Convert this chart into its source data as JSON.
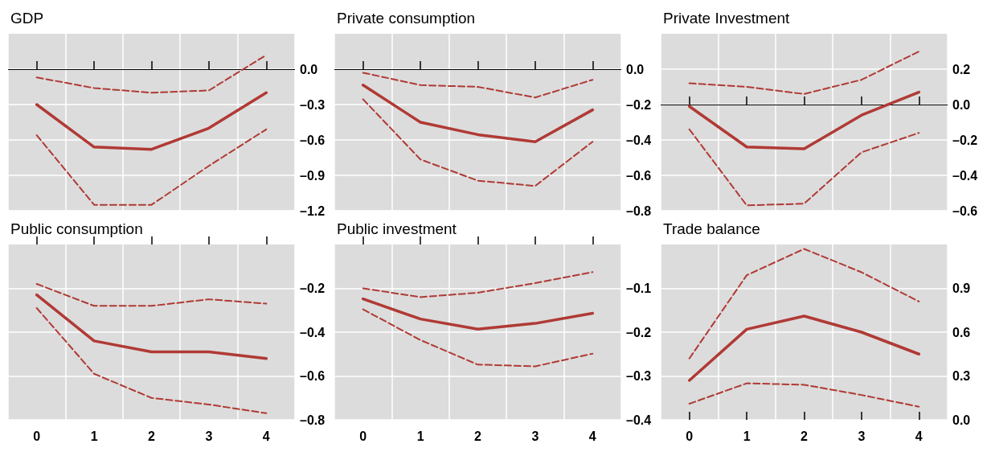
{
  "chart_data": [
    {
      "type": "line",
      "title": "GDP",
      "categories": [
        "0",
        "1",
        "2",
        "3",
        "4"
      ],
      "ylim": [
        -1.2,
        0.3
      ],
      "yticks": [
        {
          "value": 0,
          "label": "0.0"
        },
        {
          "value": -0.3,
          "label": "–0.3"
        },
        {
          "value": -0.6,
          "label": "–0.6"
        },
        {
          "value": -0.9,
          "label": "–0.9"
        },
        {
          "value": -1.2,
          "label": "–1.2"
        }
      ],
      "grid": true,
      "tick_labels": "y",
      "marker": "none",
      "ref_lines": [
        {
          "axis": "y",
          "value": 0,
          "color": "#000000"
        }
      ],
      "series": [
        {
          "color": "#b03a35",
          "line_style": "solid",
          "values": [
            -0.3,
            -0.66,
            -0.68,
            -0.5,
            -0.2
          ]
        },
        {
          "color": "#b03a35",
          "line_style": "dashed",
          "values": [
            -0.07,
            -0.16,
            -0.2,
            -0.18,
            0.12
          ]
        },
        {
          "color": "#b03a35",
          "line_style": "dashed",
          "values": [
            -0.56,
            -1.15,
            -1.15,
            -0.82,
            -0.51
          ]
        }
      ]
    },
    {
      "type": "line",
      "title": "Private consumption",
      "categories": [
        "0",
        "1",
        "2",
        "3",
        "4"
      ],
      "ylim": [
        -0.8,
        0.2
      ],
      "yticks": [
        {
          "value": 0,
          "label": "0.0"
        },
        {
          "value": -0.2,
          "label": "–0.2"
        },
        {
          "value": -0.4,
          "label": "–0.4"
        },
        {
          "value": -0.6,
          "label": "–0.6"
        },
        {
          "value": -0.8,
          "label": "–0.8"
        }
      ],
      "grid": true,
      "tick_labels": "y",
      "marker": "none",
      "ref_lines": [
        {
          "axis": "y",
          "value": 0,
          "color": "#000000"
        }
      ],
      "series": [
        {
          "color": "#b03a35",
          "line_style": "solid",
          "values": [
            -0.09,
            -0.3,
            -0.37,
            -0.41,
            -0.23
          ]
        },
        {
          "color": "#b03a35",
          "line_style": "dashed",
          "values": [
            -0.02,
            -0.09,
            -0.1,
            -0.16,
            -0.06
          ]
        },
        {
          "color": "#b03a35",
          "line_style": "dashed",
          "values": [
            -0.17,
            -0.51,
            -0.63,
            -0.66,
            -0.41
          ]
        }
      ]
    },
    {
      "type": "line",
      "title": "Private Investment",
      "categories": [
        "0",
        "1",
        "2",
        "3",
        "4"
      ],
      "ylim": [
        -0.6,
        0.4
      ],
      "yticks": [
        {
          "value": 0.2,
          "label": "0.2"
        },
        {
          "value": 0,
          "label": "0.0"
        },
        {
          "value": -0.2,
          "label": "–0.2"
        },
        {
          "value": -0.4,
          "label": "–0.4"
        },
        {
          "value": -0.6,
          "label": "–0.6"
        }
      ],
      "grid": true,
      "tick_labels": "y",
      "marker": "none",
      "ref_lines": [
        {
          "axis": "y",
          "value": 0,
          "color": "#000000"
        }
      ],
      "series": [
        {
          "color": "#b03a35",
          "line_style": "solid",
          "values": [
            -0.01,
            -0.24,
            -0.25,
            -0.06,
            0.07
          ]
        },
        {
          "color": "#b03a35",
          "line_style": "dashed",
          "values": [
            0.12,
            0.1,
            0.06,
            0.14,
            0.3
          ]
        },
        {
          "color": "#b03a35",
          "line_style": "dashed",
          "values": [
            -0.14,
            -0.57,
            -0.56,
            -0.27,
            -0.16
          ]
        }
      ]
    },
    {
      "type": "line",
      "title": "Public consumption",
      "categories": [
        "0",
        "1",
        "2",
        "3",
        "4"
      ],
      "ylim": [
        -0.8,
        0
      ],
      "yticks": [
        {
          "value": -0.2,
          "label": "–0.2"
        },
        {
          "value": -0.4,
          "label": "–0.4"
        },
        {
          "value": -0.6,
          "label": "–0.6"
        },
        {
          "value": -0.8,
          "label": "–0.8"
        }
      ],
      "grid": true,
      "marker": "none",
      "series": [
        {
          "color": "#b03a35",
          "line_style": "solid",
          "values": [
            -0.23,
            -0.44,
            -0.49,
            -0.49,
            -0.52
          ]
        },
        {
          "color": "#b03a35",
          "line_style": "dashed",
          "values": [
            -0.18,
            -0.28,
            -0.28,
            -0.25,
            -0.27
          ]
        },
        {
          "color": "#b03a35",
          "line_style": "dashed",
          "values": [
            -0.29,
            -0.59,
            -0.7,
            -0.73,
            -0.77
          ]
        }
      ]
    },
    {
      "type": "line",
      "title": "Public investment",
      "categories": [
        "0",
        "1",
        "2",
        "3",
        "4"
      ],
      "ylim": [
        -0.4,
        0
      ],
      "yticks": [
        {
          "value": -0.1,
          "label": "–0.1"
        },
        {
          "value": -0.2,
          "label": "–0.2"
        },
        {
          "value": -0.3,
          "label": "–0.3"
        },
        {
          "value": -0.4,
          "label": "–0.4"
        }
      ],
      "grid": true,
      "marker": "none",
      "series": [
        {
          "color": "#b03a35",
          "line_style": "solid",
          "values": [
            -0.124,
            -0.17,
            -0.193,
            -0.18,
            -0.157
          ]
        },
        {
          "color": "#b03a35",
          "line_style": "dashed",
          "values": [
            -0.1,
            -0.12,
            -0.11,
            -0.088,
            -0.063
          ]
        },
        {
          "color": "#b03a35",
          "line_style": "dashed",
          "values": [
            -0.148,
            -0.218,
            -0.274,
            -0.278,
            -0.249
          ]
        }
      ]
    },
    {
      "type": "line",
      "title": "Trade balance",
      "categories": [
        "0",
        "1",
        "2",
        "3",
        "4"
      ],
      "ylim": [
        0,
        1.2
      ],
      "yticks": [
        {
          "value": 0,
          "label": "0.0"
        },
        {
          "value": 0.3,
          "label": "0.3"
        },
        {
          "value": 0.6,
          "label": "0.6"
        },
        {
          "value": 0.9,
          "label": "0.9"
        }
      ],
      "grid": true,
      "marker": "none",
      "series": [
        {
          "color": "#b03a35",
          "line_style": "solid",
          "values": [
            0.27,
            0.62,
            0.71,
            0.6,
            0.45
          ]
        },
        {
          "color": "#b03a35",
          "line_style": "dashed",
          "values": [
            0.42,
            0.99,
            1.17,
            1.01,
            0.81
          ]
        },
        {
          "color": "#b03a35",
          "line_style": "dashed",
          "values": [
            0.11,
            0.25,
            0.24,
            0.17,
            0.09
          ]
        }
      ]
    }
  ]
}
